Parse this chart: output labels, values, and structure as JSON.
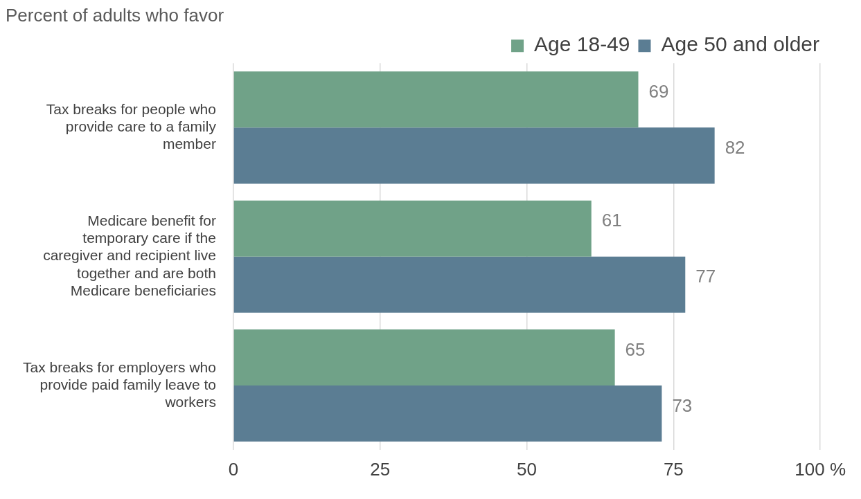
{
  "chart_data": {
    "type": "bar",
    "orientation": "horizontal",
    "title": "Percent of adults who favor",
    "categories": [
      "Tax breaks for people who provide care to a family member",
      "Medicare benefit for temporary care if the caregiver and recipient live together and are both Medicare beneficiaries",
      "Tax breaks for employers who provide paid family leave to workers"
    ],
    "series": [
      {
        "name": "Age 18-49",
        "color": "#70a288",
        "values": [
          69,
          61,
          65
        ]
      },
      {
        "name": "Age 50 and older",
        "color": "#5b7d93",
        "values": [
          82,
          77,
          73
        ]
      }
    ],
    "xlim": [
      0,
      100
    ],
    "xticks": [
      0,
      25,
      50,
      75,
      {
        "value": 100,
        "label": "100 %"
      }
    ],
    "grid": "x",
    "legend": "top",
    "data_labels": true
  }
}
